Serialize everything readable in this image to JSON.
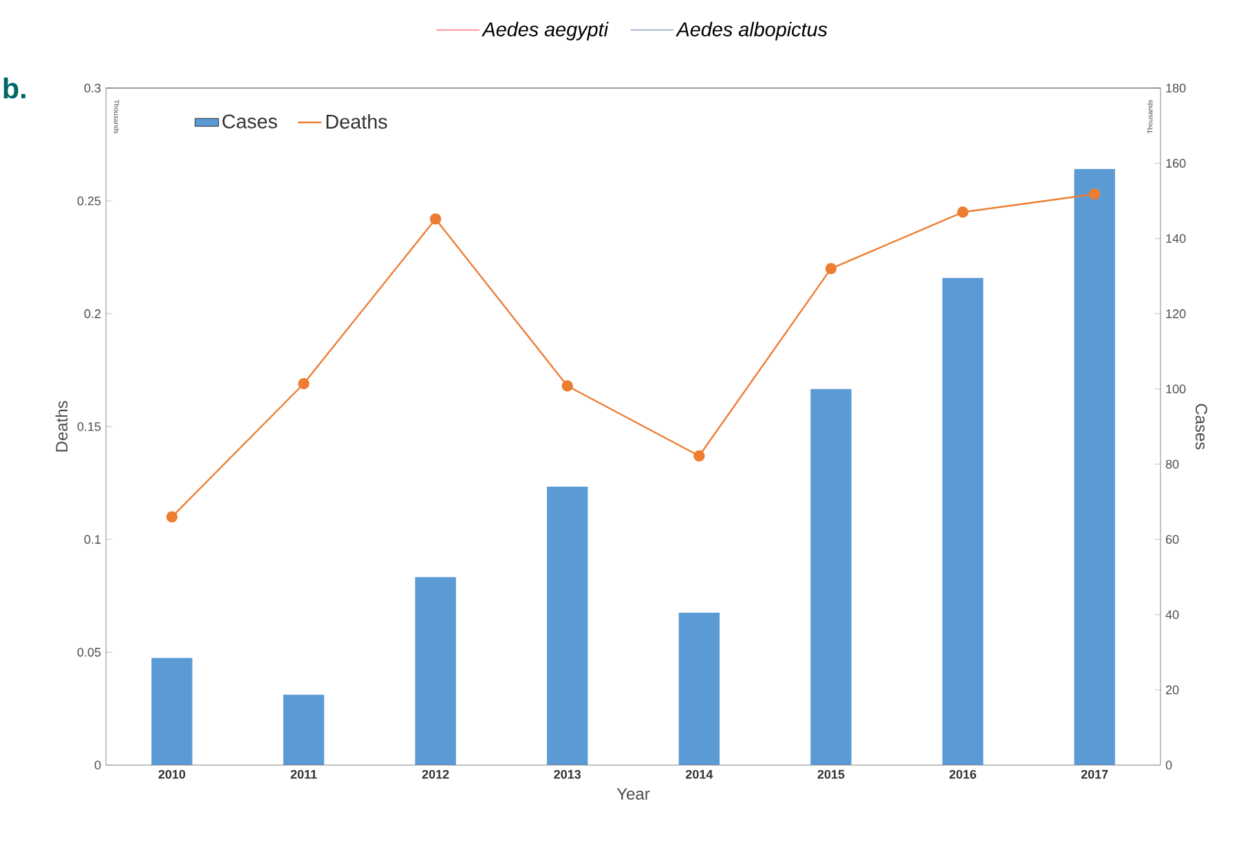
{
  "chart_data": {
    "type": "bar",
    "xlabel": "Year",
    "ylabel": "Deaths",
    "y2label": "Cases",
    "categories": [
      "2010",
      "2011",
      "2012",
      "2013",
      "2014",
      "2015",
      "2016",
      "2017"
    ],
    "series": [
      {
        "name": "Cases",
        "axis": "y2",
        "color": "#5b9bd5",
        "values": [
          28.5,
          18.7,
          50,
          74,
          40.5,
          100,
          129.5,
          158.5
        ]
      },
      {
        "name": "Deaths",
        "type": "line",
        "axis": "y",
        "color": "#ed7d31",
        "marker": "circle",
        "values": [
          0.11,
          0.169,
          0.242,
          0.168,
          0.137,
          0.22,
          0.245,
          0.253
        ]
      },
      {
        "name": "*Aedes aegypti*",
        "type": "line",
        "color": "#ff0000",
        "values": [
          null,
          null,
          null,
          null,
          null,
          null,
          null,
          null
        ]
      },
      {
        "name": "*Aedes albopictus*",
        "type": "line",
        "color": "#2f4f9f",
        "values": [
          null,
          null,
          null,
          null,
          null,
          null,
          null,
          null
        ]
      }
    ],
    "ylim": [
      0,
      0.3
    ],
    "yticks": [
      0,
      0.05,
      0.1,
      0.15,
      0.2,
      0.25,
      0.3
    ],
    "y2lim": [
      0,
      180
    ],
    "y2ticks": [
      0,
      20,
      40,
      60,
      80,
      100,
      120,
      140,
      160,
      180
    ],
    "legend": "top left",
    "annotations": [
      "b.",
      "Thousands",
      "Thousands"
    ]
  }
}
